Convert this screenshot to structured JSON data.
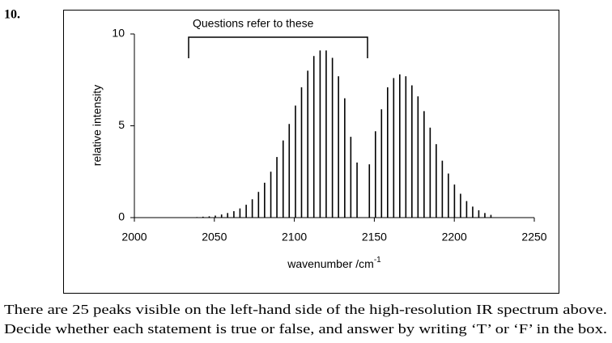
{
  "question_number": "10.",
  "chart_data": {
    "type": "stem",
    "annotation": "Questions refer to these",
    "xlabel": {
      "text": "wavenumber /cm",
      "superscript": "-1"
    },
    "ylabel": "relative intensity",
    "xlim": [
      2000,
      2250
    ],
    "xticks": [
      2000,
      2050,
      2100,
      2150,
      2200,
      2250
    ],
    "ylim": [
      0,
      10
    ],
    "yticks": [
      0,
      5,
      10
    ],
    "color": "#000000",
    "x": [
      2035.2,
      2039.1,
      2042.9,
      2046.8,
      2050.6,
      2054.5,
      2058.3,
      2062.2,
      2066.0,
      2069.9,
      2073.7,
      2077.6,
      2081.4,
      2085.3,
      2089.1,
      2093.0,
      2096.8,
      2100.7,
      2104.5,
      2108.4,
      2112.2,
      2116.1,
      2119.9,
      2123.8,
      2127.6,
      2131.5,
      2135.3,
      2139.2,
      2146.9,
      2150.7,
      2154.5,
      2158.3,
      2162.1,
      2165.9,
      2169.7,
      2173.5,
      2177.3,
      2181.1,
      2184.9,
      2188.7,
      2192.5,
      2196.3,
      2200.1,
      2203.9,
      2207.7,
      2211.5,
      2215.3,
      2219.1,
      2222.9
    ],
    "values": [
      0.02,
      0.03,
      0.05,
      0.07,
      0.11,
      0.17,
      0.25,
      0.35,
      0.5,
      0.7,
      1.0,
      1.4,
      1.9,
      2.5,
      3.3,
      4.2,
      5.1,
      6.1,
      7.1,
      8.0,
      8.8,
      9.1,
      9.1,
      8.7,
      7.7,
      6.5,
      4.4,
      3.0,
      2.9,
      4.7,
      5.9,
      7.1,
      7.6,
      7.8,
      7.7,
      7.2,
      6.6,
      5.8,
      4.9,
      4.0,
      3.1,
      2.4,
      1.8,
      1.3,
      0.9,
      0.6,
      0.4,
      0.25,
      0.15
    ]
  },
  "paragraph": [
    "There are 25 peaks visible on the left-hand side of the high-resolution IR spectrum above.",
    "Decide whether each statement is true or false, and answer by writing ‘T’ or ‘F’ in the box."
  ]
}
